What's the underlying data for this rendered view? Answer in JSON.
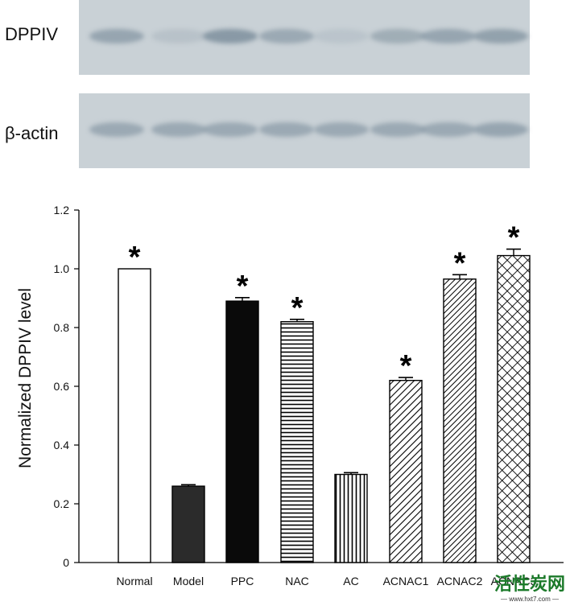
{
  "blots": [
    {
      "label": "DPPIV",
      "intensities": [
        0.55,
        0.18,
        0.7,
        0.5,
        0.15,
        0.45,
        0.55,
        0.6
      ]
    },
    {
      "label": "β-actin",
      "intensities": [
        0.5,
        0.5,
        0.5,
        0.5,
        0.5,
        0.5,
        0.5,
        0.55
      ]
    }
  ],
  "chart_data": {
    "type": "bar",
    "categories": [
      "Normal",
      "Model",
      "PPC",
      "NAC",
      "AC",
      "ACNAC1",
      "ACNAC2",
      "ACNAC3"
    ],
    "values": [
      1.0,
      0.26,
      0.89,
      0.82,
      0.3,
      0.62,
      0.965,
      1.045
    ],
    "errors": [
      0.0,
      0.005,
      0.012,
      0.008,
      0.006,
      0.01,
      0.015,
      0.022
    ],
    "significant": [
      true,
      false,
      true,
      true,
      false,
      true,
      true,
      true
    ],
    "significance_mark": "*",
    "patterns": [
      "white",
      "dark-gray",
      "black",
      "horizontal-lines",
      "vertical-lines",
      "diagonal-lines",
      "dense-diagonal-lines",
      "crosshatch"
    ],
    "ylabel": "Normalized DPPIV level",
    "xlabel": "",
    "ylim": [
      0,
      1.2
    ],
    "yticks": [
      "0",
      "0.2",
      "0.4",
      "0.6",
      "0.8",
      "1.0",
      "1.2"
    ],
    "ytick_values": [
      0,
      0.2,
      0.4,
      0.6,
      0.8,
      1.0,
      1.2
    ]
  },
  "watermark": {
    "title": "活性炭网",
    "url": "— www.hxt7.com —"
  }
}
